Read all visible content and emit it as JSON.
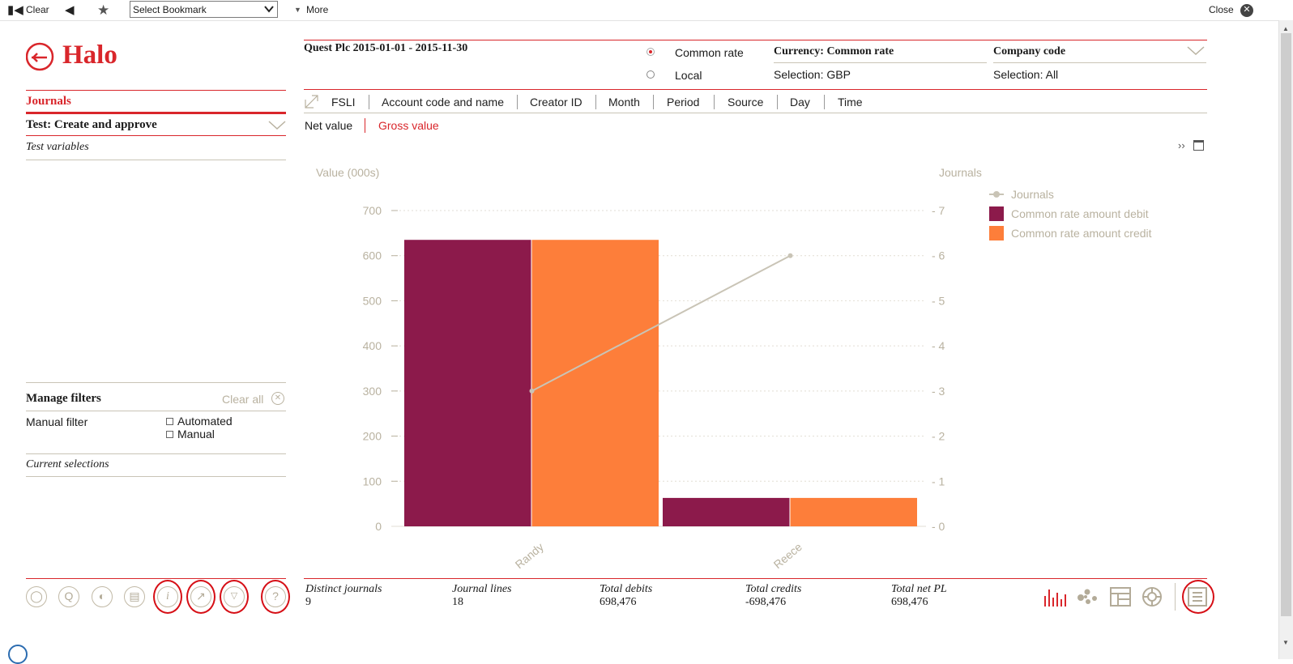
{
  "toolbar": {
    "clear_label": "Clear",
    "bookmark_value": "Select Bookmark",
    "more_label": "More",
    "close_label": "Close"
  },
  "brand": {
    "logo_text": "Halo"
  },
  "left": {
    "journals_heading": "Journals",
    "test_title": "Test: Create and approve",
    "test_variables": "Test variables",
    "manage_filters": "Manage filters",
    "clear_all": "Clear all",
    "manual_filter": "Manual filter",
    "automated_option": "Automated",
    "manual_option": "Manual",
    "current_selections": "Current selections"
  },
  "header": {
    "title": "Quest Plc 2015-01-01 - 2015-11-30",
    "rate_common": "Common rate",
    "rate_local": "Local",
    "currency_label": "Currency: Common rate",
    "currency_selection": "Selection: GBP",
    "company_label": "Company code",
    "company_selection": "Selection: All"
  },
  "tabs": [
    "FSLI",
    "Account code and name",
    "Creator ID",
    "Month",
    "Period",
    "Source",
    "Day",
    "Time"
  ],
  "active_tab": "Creator ID",
  "value_tabs": {
    "net": "Net value",
    "gross": "Gross value"
  },
  "chart_data": {
    "type": "bar",
    "categories": [
      "Randy",
      "Reece"
    ],
    "series": [
      {
        "name": "Common rate amount debit",
        "values": [
          635,
          63
        ],
        "color": "#8c1a4b"
      },
      {
        "name": "Common rate amount credit",
        "values": [
          635,
          63
        ],
        "color": "#fd7e3a"
      }
    ],
    "line_series": {
      "name": "Journals",
      "values": [
        3,
        6
      ],
      "color": "#c9c4b6"
    },
    "ylabel": "Value (000s)",
    "y2label": "Journals",
    "ylim": [
      0,
      700
    ],
    "y2lim": [
      0,
      7
    ],
    "yticks": [
      0,
      100,
      200,
      300,
      400,
      500,
      600,
      700
    ],
    "y2ticks": [
      0,
      1,
      2,
      3,
      4,
      5,
      6,
      7
    ],
    "legend_position": "top-right",
    "grid": true
  },
  "stats": [
    {
      "label": "Distinct journals",
      "value": "9"
    },
    {
      "label": "Journal lines",
      "value": "18"
    },
    {
      "label": "Total debits",
      "value": "698,476"
    },
    {
      "label": "Total credits",
      "value": "-698,476"
    },
    {
      "label": "Total net PL",
      "value": "698,476"
    }
  ],
  "colors": {
    "accent": "#d9262b",
    "highlight": "#d60f16",
    "muted": "#b9b2a0"
  }
}
